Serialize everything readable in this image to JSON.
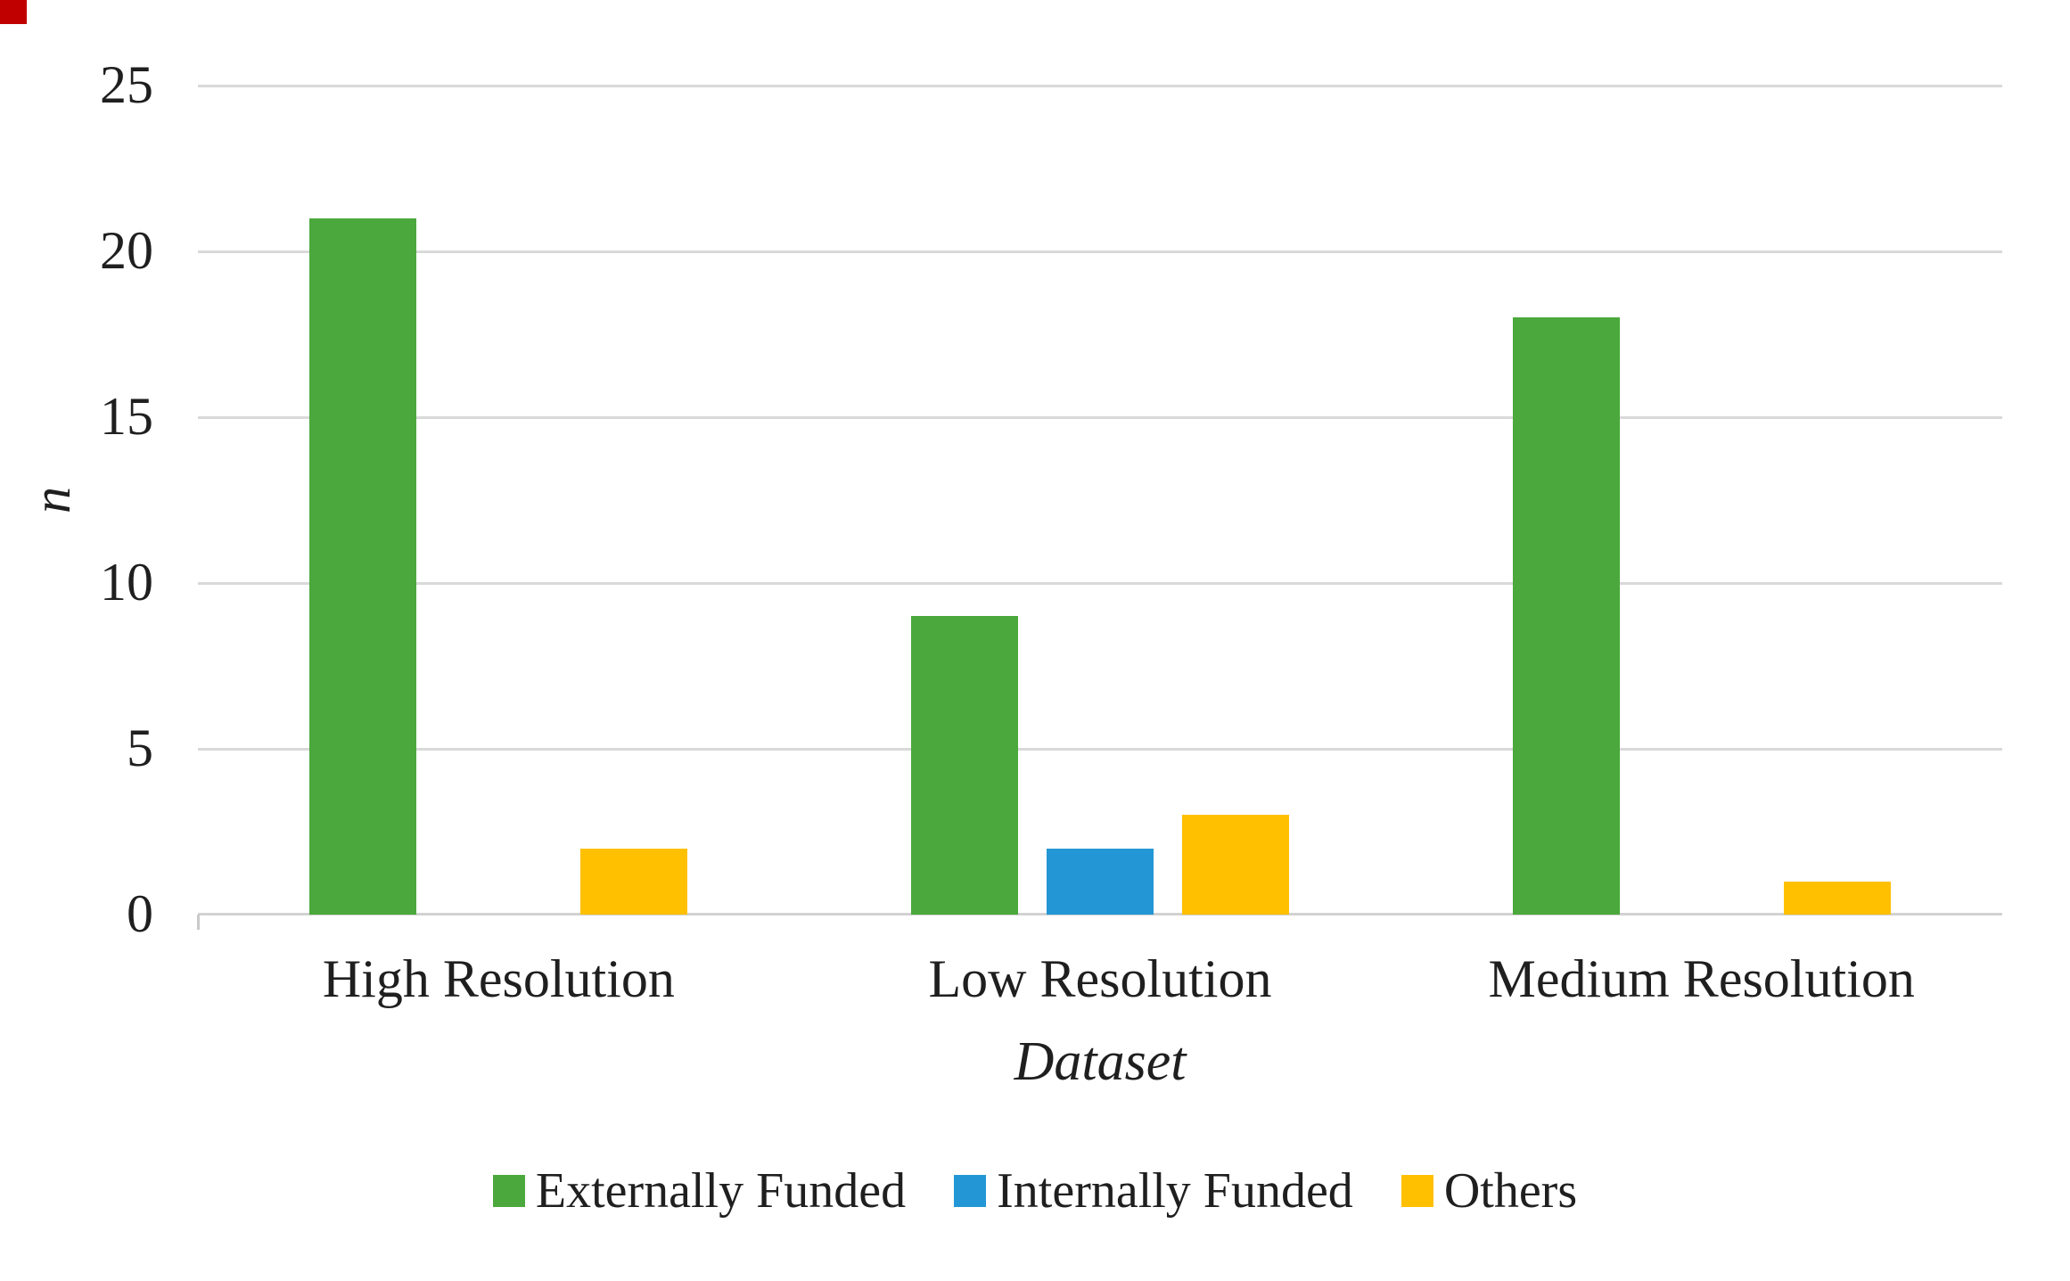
{
  "figure": {
    "background": "#FFFFFF",
    "text_color": "#1F1F1F",
    "gridline_color": "#D9D9D9",
    "axis_line_color": "#D2D2D2",
    "tick_color": "#C9C9C9"
  },
  "corner_marker": {
    "color": "#C00000"
  },
  "chart_data": {
    "type": "bar",
    "title": "",
    "categories": [
      "High Resolution",
      "Low Resolution",
      "Medium Resolution"
    ],
    "series": [
      {
        "name": "Externally Funded",
        "color": "#4BA83C",
        "values": [
          21,
          9,
          18
        ]
      },
      {
        "name": "Internally Funded",
        "color": "#2397D5",
        "values": [
          0,
          2,
          0
        ]
      },
      {
        "name": "Others",
        "color": "#FFC000",
        "values": [
          2,
          3,
          1
        ]
      }
    ],
    "xlabel": "Dataset",
    "ylabel": "n",
    "ylim": [
      0,
      25
    ],
    "yticks": [
      0,
      5,
      10,
      15,
      20,
      25
    ],
    "grid": true,
    "legend_position": "bottom"
  }
}
